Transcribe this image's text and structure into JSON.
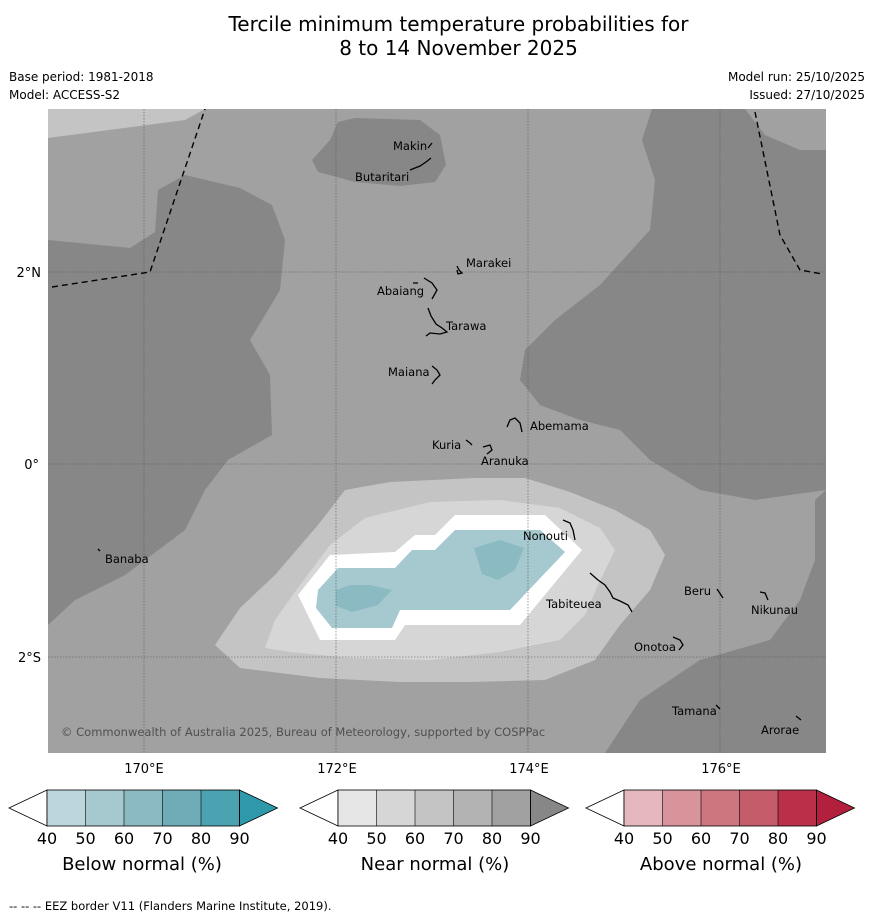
{
  "title_line1": "Tercile minimum temperature probabilities for",
  "title_line2": "8 to 14 November 2025",
  "meta_left": [
    "Base period: 1981-2018",
    "Model: ACCESS-S2"
  ],
  "meta_right": [
    "Model run: 25/10/2025",
    "Issued: 27/10/2025"
  ],
  "lat_labels": [
    "2°N",
    "0°",
    "2°S"
  ],
  "lon_labels": [
    "170°E",
    "172°E",
    "174°E",
    "176°E"
  ],
  "islands": [
    "Makin",
    "Butaritari",
    "Marakei",
    "Abaiang",
    "Tarawa",
    "Maiana",
    "Abemama",
    "Kuria",
    "Aranuka",
    "Nonouti",
    "Banaba",
    "Tabiteuea",
    "Beru",
    "Nikunau",
    "Onotoa",
    "Tamana",
    "Arorae"
  ],
  "copyright": "© Commonwealth of Australia 2025, Bureau of Meteorology, supported by COSPPac",
  "colorbars": [
    {
      "label": "Below normal (%)",
      "ticks": [
        "40",
        "50",
        "60",
        "70",
        "80",
        "90"
      ],
      "colors": [
        "#ffffff",
        "#bdd5dc",
        "#a6c8cf",
        "#8cbac3",
        "#6eacb7",
        "#4ba3b2",
        "#2f98aa"
      ]
    },
    {
      "label": "Near normal (%)",
      "ticks": [
        "40",
        "50",
        "60",
        "70",
        "80",
        "90"
      ],
      "colors": [
        "#ffffff",
        "#e6e6e6",
        "#d6d6d6",
        "#c4c4c4",
        "#b3b3b3",
        "#a1a1a1",
        "#878787"
      ]
    },
    {
      "label": "Above normal (%)",
      "ticks": [
        "40",
        "50",
        "60",
        "70",
        "80",
        "90"
      ],
      "colors": [
        "#ffffff",
        "#e4b8be",
        "#d8939b",
        "#cd767f",
        "#c45d69",
        "#bb3049",
        "#b3203e"
      ]
    }
  ],
  "footer": "--  --  -- EEZ border V11 (Flanders Marine Institute, 2019)."
}
